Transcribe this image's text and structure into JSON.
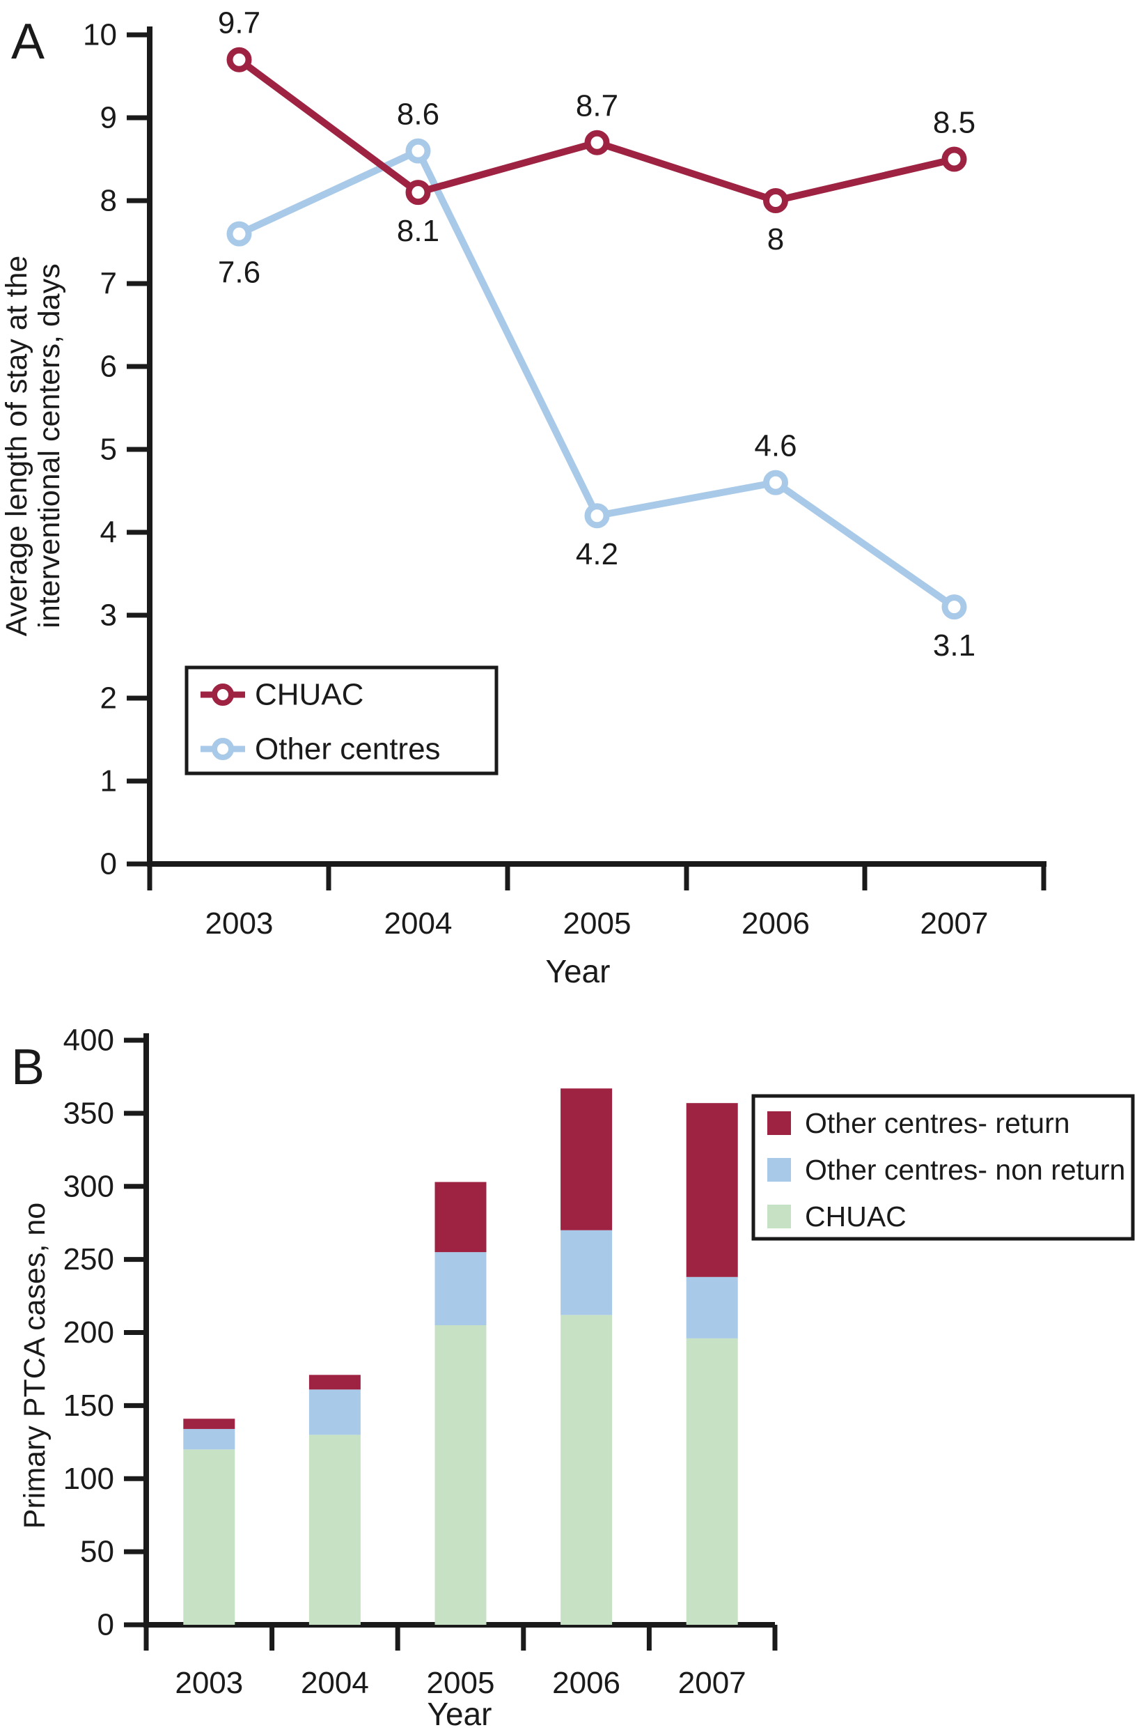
{
  "page": {
    "background": "#ffffff",
    "text_color": "#1a1a1a",
    "axis_color": "#1a1a1a"
  },
  "colors": {
    "dark_red": "#9E2342",
    "light_blue": "#A9C9E8",
    "light_green": "#C7E1C4"
  },
  "chart_data": [
    {
      "panel_label": "A",
      "type": "line",
      "categories": [
        "2003",
        "2004",
        "2005",
        "2006",
        "2007"
      ],
      "xlabel": "Year",
      "ylabel_lines": [
        "Average length of stay at the",
        "interventional centers, days"
      ],
      "ylim": [
        0,
        10
      ],
      "ytick_step": 1,
      "ytick_labels": [
        "0",
        "1",
        "2",
        "3",
        "4",
        "5",
        "6",
        "7",
        "8",
        "9",
        "10"
      ],
      "grid": false,
      "legend_position": "inside-lower-left",
      "legend_items": [
        {
          "label": "CHUAC",
          "color": "#9E2342"
        },
        {
          "label": "Other centres",
          "color": "#A9C9E8"
        }
      ],
      "series": [
        {
          "name": "CHUAC",
          "color": "#9E2342",
          "marker": "open-circle",
          "values": [
            9.7,
            8.1,
            8.7,
            8,
            8.5
          ],
          "point_labels": [
            "9.7",
            "8.1",
            "8.7",
            "8",
            "8.5"
          ],
          "label_side": [
            "above",
            "below",
            "above",
            "below",
            "above"
          ]
        },
        {
          "name": "Other centres",
          "color": "#A9C9E8",
          "marker": "open-circle",
          "values": [
            7.6,
            8.6,
            4.2,
            4.6,
            3.1
          ],
          "point_labels": [
            "7.6",
            "8.6",
            "4.2",
            "4.6",
            "3.1"
          ],
          "label_side": [
            "below",
            "above",
            "below",
            "above",
            "below"
          ]
        }
      ]
    },
    {
      "panel_label": "B",
      "type": "bar",
      "stacked": true,
      "categories": [
        "2003",
        "2004",
        "2005",
        "2006",
        "2007"
      ],
      "xlabel": "Year",
      "ylabel": "Primary PTCA cases, no",
      "ylim": [
        0,
        400
      ],
      "ytick_step": 50,
      "ytick_labels": [
        "0",
        "50",
        "100",
        "150",
        "200",
        "250",
        "300",
        "350",
        "400"
      ],
      "grid": false,
      "legend_position": "upper-right",
      "series": [
        {
          "name": "CHUAC",
          "color": "#C7E1C4",
          "values": [
            120,
            130,
            205,
            212,
            196
          ]
        },
        {
          "name": "Other centres- non return",
          "color": "#A9C9E8",
          "values": [
            14,
            31,
            50,
            58,
            42
          ]
        },
        {
          "name": "Other centres- return",
          "color": "#9E2342",
          "values": [
            7,
            10,
            48,
            97,
            119
          ]
        }
      ],
      "totals": [
        141,
        171,
        303,
        367,
        357
      ],
      "legend_order": [
        2,
        1,
        0
      ]
    }
  ]
}
